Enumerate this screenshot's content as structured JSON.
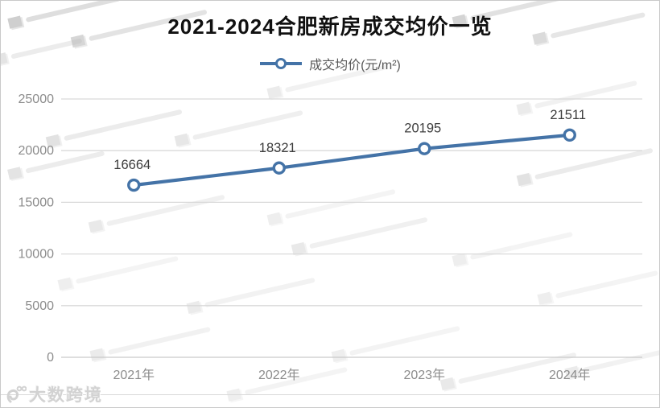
{
  "title": "2021-2024合肥新房成交均价一览",
  "legend": {
    "label": "成交均价(元/m²)"
  },
  "watermark": {
    "brand": "大数跨境"
  },
  "colors": {
    "line": "#4473a7",
    "marker_fill": "#ffffff",
    "grid": "#d9d9d9",
    "axis_line": "#c9c9c9",
    "axis_text": "#8c8c8c",
    "data_label": "#3d3d3d",
    "title_text": "#111111",
    "legend_text": "#595959"
  },
  "chart_data": {
    "type": "line",
    "title": "2021-2024合肥新房成交均价一览",
    "categories": [
      "2021年",
      "2022年",
      "2023年",
      "2024年"
    ],
    "series": [
      {
        "name": "成交均价(元/m²)",
        "values": [
          16664,
          18321,
          20195,
          21511
        ]
      }
    ],
    "ylim": [
      0,
      25000
    ],
    "ytick_step": 5000,
    "yticks": [
      0,
      5000,
      10000,
      15000,
      20000,
      25000
    ],
    "grid": "horizontal",
    "legend_position": "top",
    "marker": "open-circle",
    "data_labels": true
  }
}
